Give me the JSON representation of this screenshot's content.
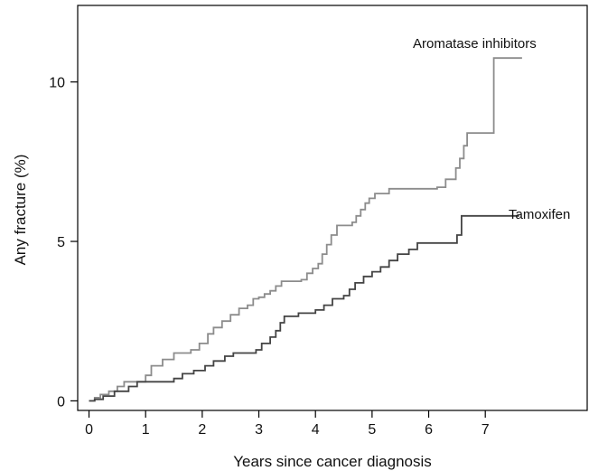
{
  "chart_data": {
    "type": "line",
    "xlabel": "Years since cancer diagnosis",
    "ylabel": "Any fracture (%)",
    "xlim": [
      -0.2,
      8.8
    ],
    "ylim": [
      -0.3,
      12.4
    ],
    "x_ticks": [
      0,
      1,
      2,
      3,
      4,
      5,
      6,
      7
    ],
    "y_ticks": [
      0,
      5,
      10
    ],
    "grid": false,
    "step": true,
    "series": [
      {
        "name": "Aromatase inhibitors",
        "color": "#8c8c8c",
        "points": [
          [
            0,
            0
          ],
          [
            0.1,
            0.1
          ],
          [
            0.2,
            0.2
          ],
          [
            0.35,
            0.3
          ],
          [
            0.5,
            0.45
          ],
          [
            0.62,
            0.6
          ],
          [
            0.9,
            0.6
          ],
          [
            1.0,
            0.8
          ],
          [
            1.1,
            1.1
          ],
          [
            1.3,
            1.3
          ],
          [
            1.5,
            1.5
          ],
          [
            1.8,
            1.6
          ],
          [
            1.95,
            1.8
          ],
          [
            2.1,
            2.1
          ],
          [
            2.2,
            2.3
          ],
          [
            2.35,
            2.5
          ],
          [
            2.5,
            2.7
          ],
          [
            2.65,
            2.9
          ],
          [
            2.8,
            3.0
          ],
          [
            2.9,
            3.2
          ],
          [
            3.0,
            3.25
          ],
          [
            3.1,
            3.35
          ],
          [
            3.2,
            3.45
          ],
          [
            3.3,
            3.6
          ],
          [
            3.4,
            3.75
          ],
          [
            3.75,
            3.8
          ],
          [
            3.85,
            4.0
          ],
          [
            3.95,
            4.15
          ],
          [
            4.05,
            4.3
          ],
          [
            4.12,
            4.6
          ],
          [
            4.2,
            4.9
          ],
          [
            4.28,
            5.2
          ],
          [
            4.38,
            5.5
          ],
          [
            4.65,
            5.6
          ],
          [
            4.72,
            5.8
          ],
          [
            4.8,
            6.0
          ],
          [
            4.88,
            6.2
          ],
          [
            4.95,
            6.35
          ],
          [
            5.05,
            6.5
          ],
          [
            5.3,
            6.65
          ],
          [
            6.15,
            6.7
          ],
          [
            6.3,
            6.95
          ],
          [
            6.48,
            7.3
          ],
          [
            6.55,
            7.6
          ],
          [
            6.62,
            8.0
          ],
          [
            6.68,
            8.4
          ],
          [
            7.15,
            10.75
          ],
          [
            7.65,
            10.75
          ]
        ]
      },
      {
        "name": "Tamoxifen",
        "color": "#444444",
        "points": [
          [
            0,
            0
          ],
          [
            0.1,
            0.05
          ],
          [
            0.25,
            0.15
          ],
          [
            0.45,
            0.3
          ],
          [
            0.7,
            0.45
          ],
          [
            0.85,
            0.6
          ],
          [
            1.5,
            0.7
          ],
          [
            1.65,
            0.85
          ],
          [
            1.85,
            0.95
          ],
          [
            2.05,
            1.1
          ],
          [
            2.2,
            1.25
          ],
          [
            2.4,
            1.4
          ],
          [
            2.55,
            1.5
          ],
          [
            2.95,
            1.6
          ],
          [
            3.05,
            1.8
          ],
          [
            3.2,
            2.0
          ],
          [
            3.3,
            2.2
          ],
          [
            3.38,
            2.45
          ],
          [
            3.45,
            2.65
          ],
          [
            3.7,
            2.75
          ],
          [
            4.0,
            2.85
          ],
          [
            4.15,
            3.0
          ],
          [
            4.3,
            3.2
          ],
          [
            4.5,
            3.3
          ],
          [
            4.6,
            3.5
          ],
          [
            4.7,
            3.7
          ],
          [
            4.85,
            3.9
          ],
          [
            5.0,
            4.05
          ],
          [
            5.15,
            4.2
          ],
          [
            5.3,
            4.4
          ],
          [
            5.45,
            4.6
          ],
          [
            5.65,
            4.75
          ],
          [
            5.8,
            4.95
          ],
          [
            6.5,
            5.2
          ],
          [
            6.58,
            5.8
          ],
          [
            7.6,
            5.8
          ]
        ]
      }
    ]
  }
}
